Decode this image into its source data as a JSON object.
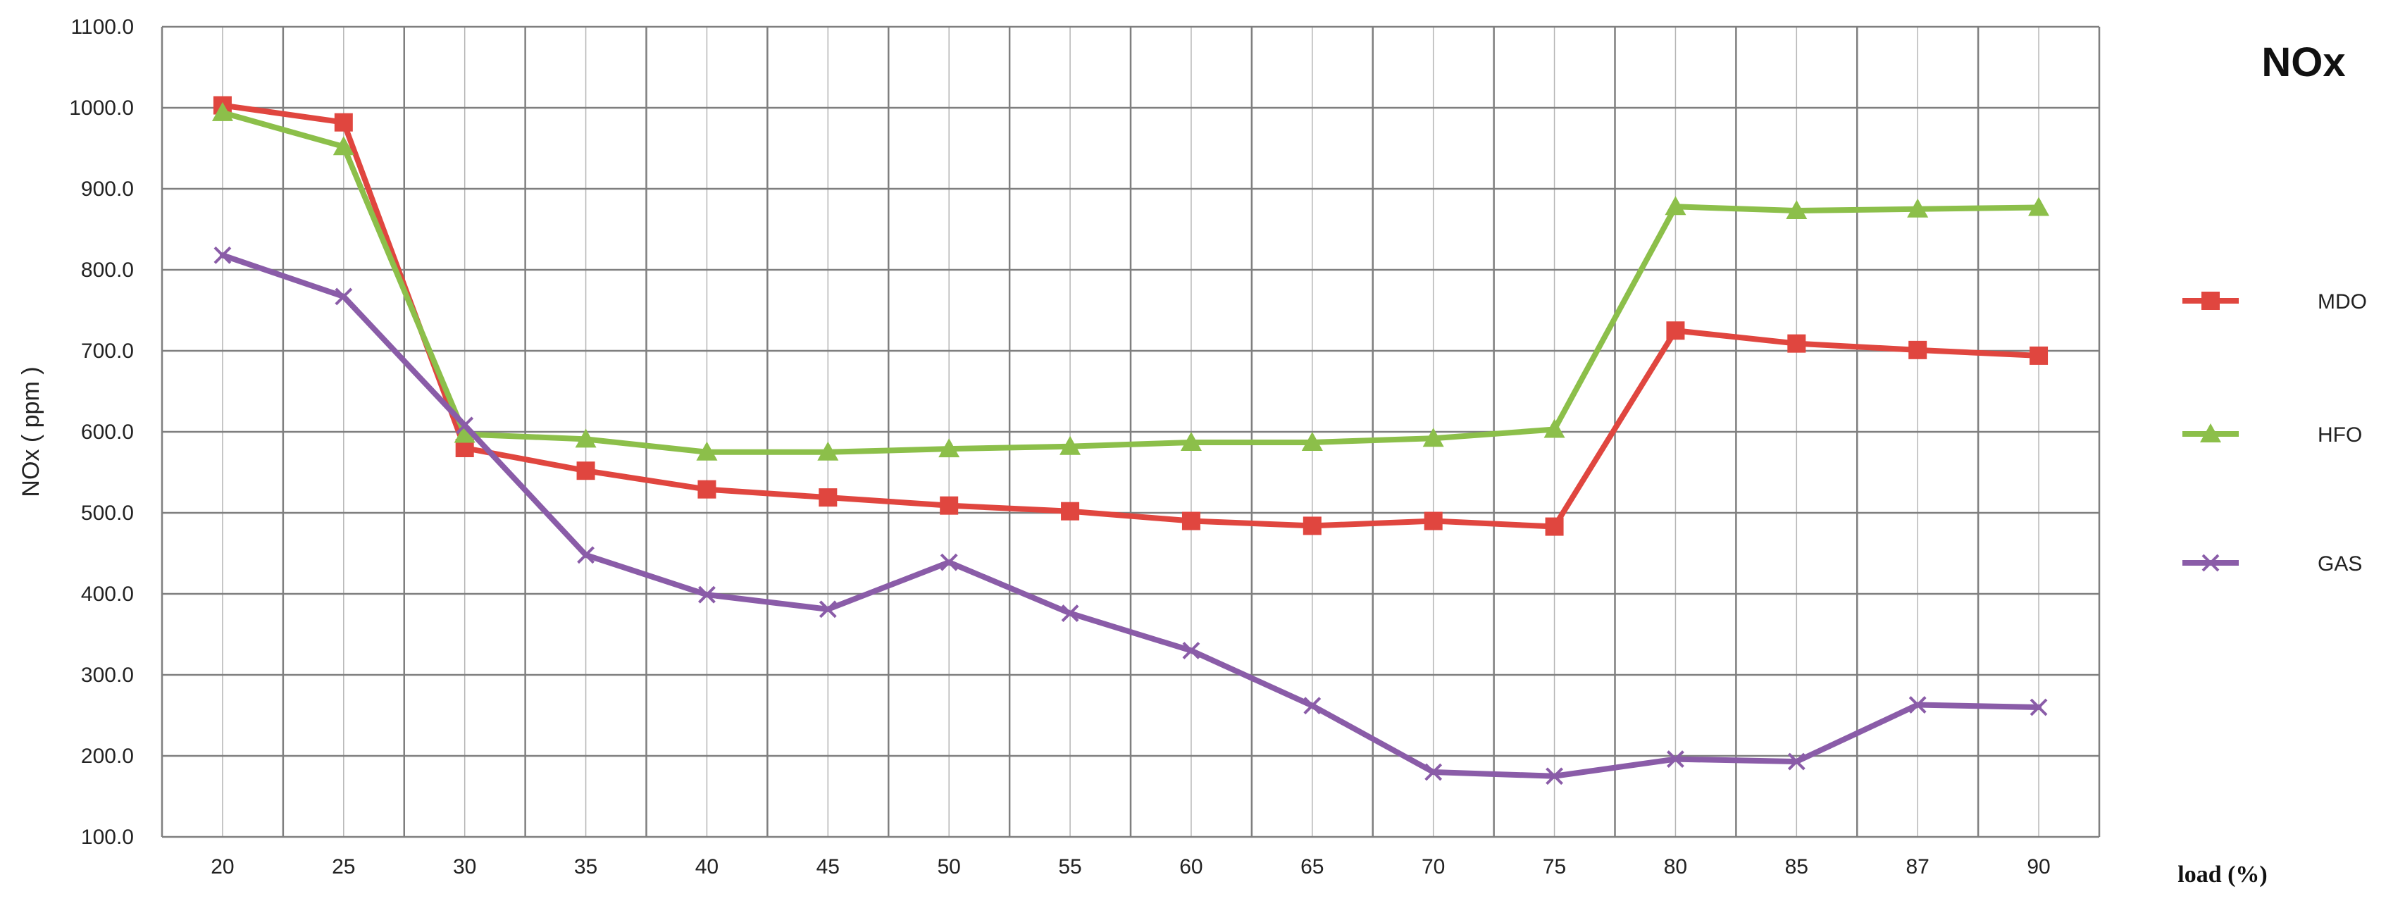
{
  "chart_data": {
    "type": "line",
    "title": "NOx",
    "xlabel": "load (%)",
    "ylabel": "NOx ( ppm )",
    "categories": [
      "20",
      "25",
      "30",
      "35",
      "40",
      "45",
      "50",
      "55",
      "60",
      "65",
      "70",
      "75",
      "80",
      "85",
      "87",
      "90"
    ],
    "ylim": [
      100,
      1100
    ],
    "yticks": [
      "100.0",
      "200.0",
      "300.0",
      "400.0",
      "500.0",
      "600.0",
      "700.0",
      "800.0",
      "900.0",
      "1000.0",
      "1100.0"
    ],
    "grid": true,
    "legend": "right",
    "series": [
      {
        "name": "MDO",
        "color": "#e0463f",
        "marker": "square",
        "values": [
          1003,
          982,
          580,
          552,
          529,
          519,
          509,
          502,
          490,
          484,
          490,
          483,
          725,
          709,
          701,
          694
        ]
      },
      {
        "name": "HFO",
        "color": "#8cbf4a",
        "marker": "triangle",
        "values": [
          994,
          952,
          597,
          591,
          575,
          575,
          579,
          582,
          587,
          587,
          592,
          603,
          878,
          873,
          875,
          877
        ]
      },
      {
        "name": "GAS",
        "color": "#8a5ca8",
        "marker": "x",
        "values": [
          818,
          767,
          608,
          448,
          399,
          381,
          439,
          376,
          330,
          262,
          180,
          175,
          196,
          193,
          263,
          260
        ]
      }
    ]
  }
}
